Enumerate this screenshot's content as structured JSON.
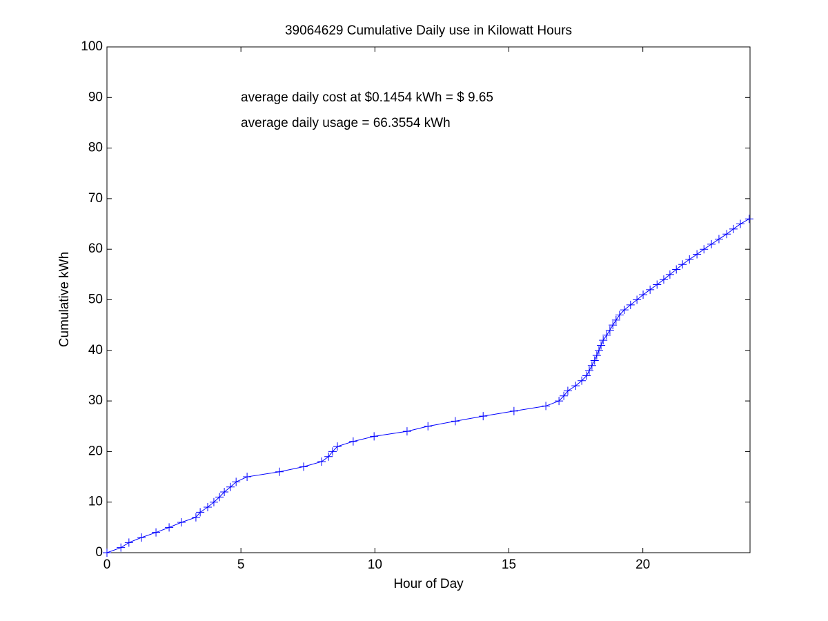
{
  "chart_data": {
    "type": "line",
    "title": "39064629 Cumulative Daily use in Kilowatt Hours",
    "xlabel": "Hour of Day",
    "ylabel": "Cumulative kWh",
    "annotations": [
      "average daily cost at $0.1454 kWh = $ 9.65",
      "average daily usage = 66.3554 kWh"
    ],
    "xlim": [
      0,
      24
    ],
    "ylim": [
      0,
      100
    ],
    "xticks": [
      0,
      5,
      10,
      15,
      20
    ],
    "yticks": [
      0,
      10,
      20,
      30,
      40,
      50,
      60,
      70,
      80,
      90,
      100
    ],
    "color": "#0000ff",
    "marker": "+",
    "x": [
      0,
      0.52,
      0.82,
      1.29,
      1.83,
      2.32,
      2.78,
      3.32,
      3.48,
      3.76,
      3.99,
      4.2,
      4.38,
      4.61,
      4.82,
      5.23,
      6.44,
      7.34,
      8.01,
      8.27,
      8.42,
      8.6,
      9.19,
      9.97,
      11.2,
      11.98,
      13.0,
      14.04,
      15.19,
      16.38,
      16.87,
      17.05,
      17.2,
      17.49,
      17.72,
      17.9,
      18.0,
      18.1,
      18.2,
      18.28,
      18.36,
      18.44,
      18.52,
      18.65,
      18.77,
      18.88,
      19.0,
      19.13,
      19.31,
      19.54,
      19.78,
      20.01,
      20.27,
      20.53,
      20.78,
      21.01,
      21.25,
      21.48,
      21.74,
      22.02,
      22.28,
      22.56,
      22.84,
      23.13,
      23.38,
      23.64,
      23.97
    ],
    "values": [
      0,
      1,
      2,
      3,
      4,
      5,
      6,
      7,
      8,
      9,
      10,
      11,
      12,
      13,
      14,
      15,
      16,
      17,
      18,
      19,
      20,
      21,
      22,
      23,
      24,
      25,
      26,
      27,
      28,
      29,
      30,
      31,
      32,
      33,
      34,
      35,
      36,
      37,
      38,
      39,
      40,
      41,
      42,
      43,
      44,
      45,
      46,
      47,
      48,
      49,
      50,
      51,
      52,
      53,
      54,
      55,
      56,
      57,
      58,
      59,
      60,
      61,
      62,
      63,
      64,
      65,
      66
    ]
  }
}
